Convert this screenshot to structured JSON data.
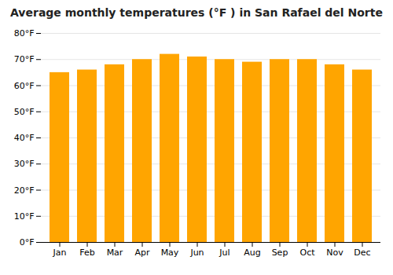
{
  "chart_data": {
    "type": "bar",
    "title": "Average monthly temperatures (°F ) in San Rafael del Norte",
    "categories": [
      "Jan",
      "Feb",
      "Mar",
      "Apr",
      "May",
      "Jun",
      "Jul",
      "Aug",
      "Sep",
      "Oct",
      "Nov",
      "Dec"
    ],
    "values": [
      65,
      66,
      68,
      70,
      72,
      71,
      70,
      69,
      70,
      70,
      68,
      66
    ],
    "color": "#FFA500",
    "ylim": [
      0,
      80
    ],
    "yticks": [
      {
        "value": 0,
        "label": "0°F"
      },
      {
        "value": 10,
        "label": "10°F"
      },
      {
        "value": 20,
        "label": "20°F"
      },
      {
        "value": 30,
        "label": "30°F"
      },
      {
        "value": 40,
        "label": "40°F"
      },
      {
        "value": 50,
        "label": "50°F"
      },
      {
        "value": 60,
        "label": "60°F"
      },
      {
        "value": 70,
        "label": "70°F"
      },
      {
        "value": 80,
        "label": "80°F"
      }
    ],
    "grid": true
  }
}
